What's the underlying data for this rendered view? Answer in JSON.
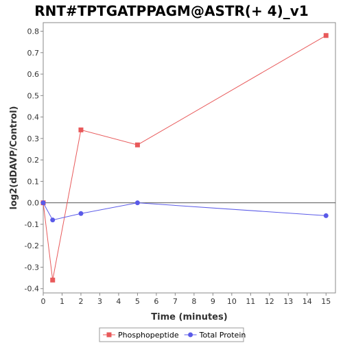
{
  "chart_data": {
    "type": "line",
    "title": "RNT#TPTGATPPAGM@ASTR(+ 4)_v1",
    "xlabel": "Time (minutes)",
    "ylabel": "log2(dDAVP/Control)",
    "xlim": [
      0,
      15.5
    ],
    "ylim": [
      -0.42,
      0.84
    ],
    "xticks": [
      0,
      1,
      2,
      3,
      4,
      5,
      6,
      7,
      8,
      9,
      10,
      11,
      12,
      13,
      14,
      15
    ],
    "yticks": [
      -0.4,
      -0.3,
      -0.2,
      -0.1,
      0.0,
      0.1,
      0.2,
      0.3,
      0.4,
      0.5,
      0.6,
      0.7,
      0.8
    ],
    "ytick_labels": [
      "-0.4",
      "-0.3",
      "-0.2",
      "-0.1",
      "0.0",
      "0.1",
      "0.2",
      "0.3",
      "0.4",
      "0.5",
      "0.6",
      "0.7",
      "0.8"
    ],
    "zero_line": true,
    "grid": false,
    "legend_position": "bottom",
    "series": [
      {
        "name": "Phosphopeptide",
        "color": "#e8595a",
        "marker": "square",
        "x": [
          0,
          0.5,
          2,
          5,
          15
        ],
        "y": [
          0.0,
          -0.36,
          0.34,
          0.27,
          0.78
        ]
      },
      {
        "name": "Total Protein",
        "color": "#5a5ae8",
        "marker": "circle",
        "x": [
          0,
          0.5,
          2,
          5,
          15
        ],
        "y": [
          0.0,
          -0.08,
          -0.05,
          0.0,
          -0.06
        ]
      }
    ]
  }
}
